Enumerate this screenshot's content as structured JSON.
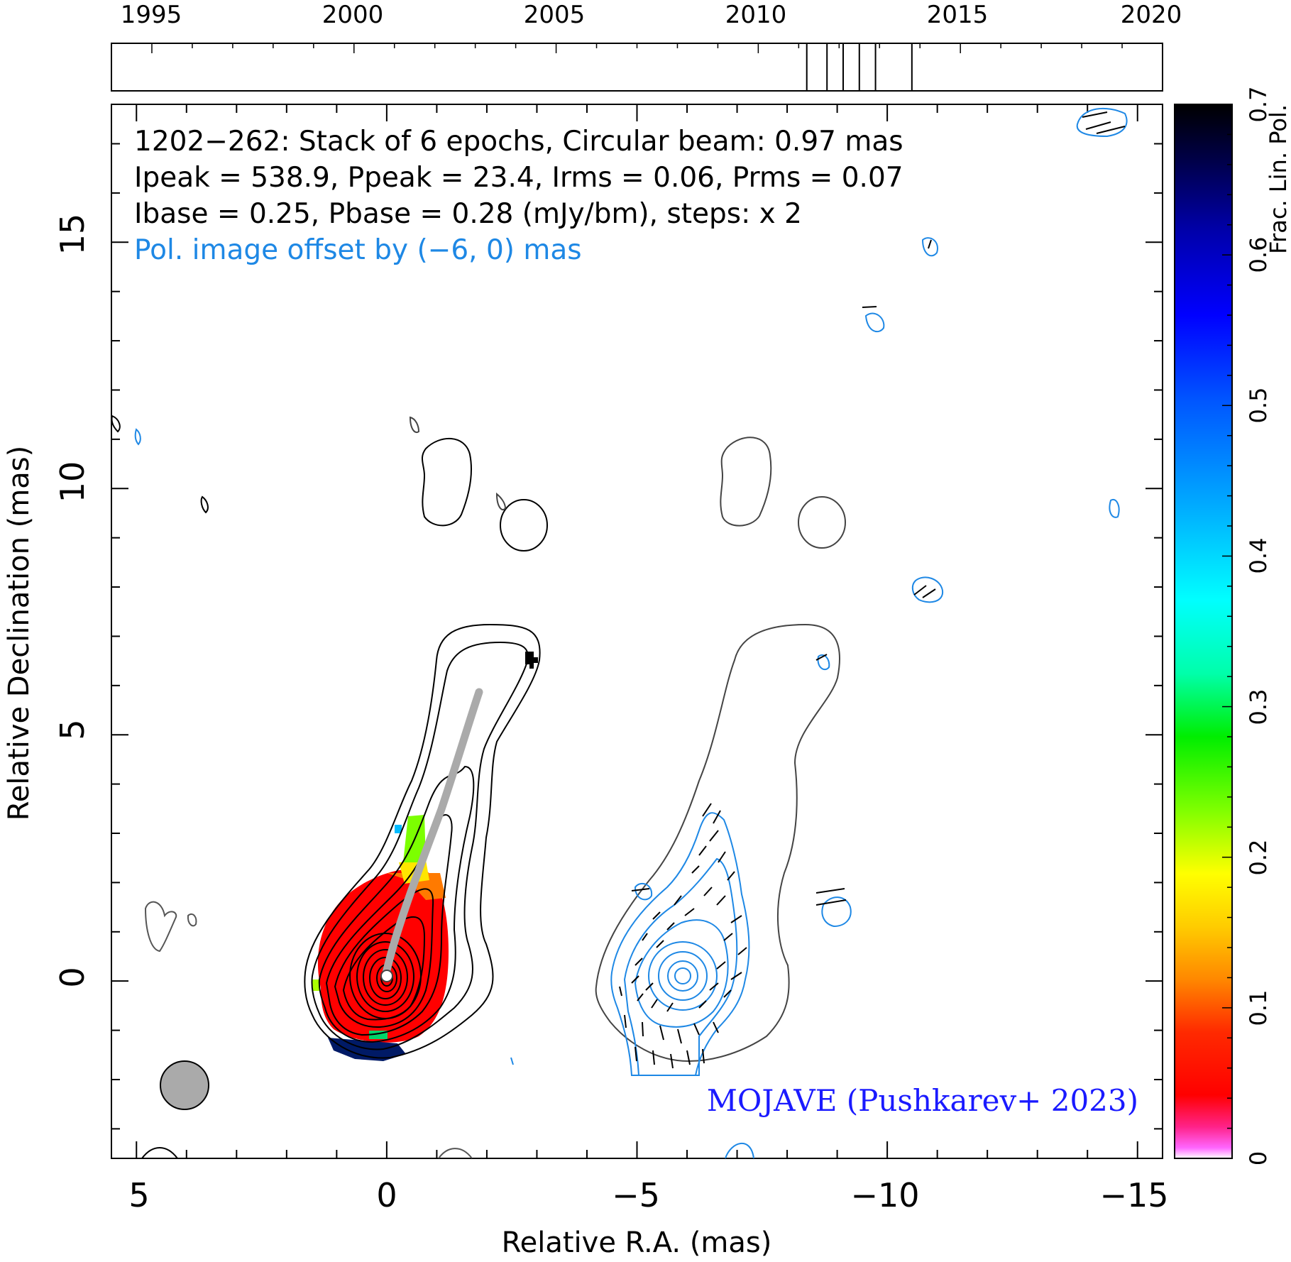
{
  "epoch_timeline": {
    "years": [
      "1995",
      "2000",
      "2005",
      "2010",
      "2015",
      "2020"
    ],
    "epoch_marks": [
      2011.2,
      2011.7,
      2012.1,
      2012.5,
      2012.9,
      2013.8
    ],
    "year_range": [
      1994,
      2020
    ]
  },
  "map": {
    "ra_range_mas": [
      5.5,
      -15.5
    ],
    "dec_range_mas": [
      -3.6,
      17.8
    ],
    "x_ticks": [
      "5",
      "0",
      "−5",
      "−10",
      "−15"
    ],
    "y_ticks": [
      "0",
      "5",
      "10",
      "15"
    ],
    "x_label": "Relative R.A. (mas)",
    "y_label": "Relative Declination (mas)",
    "pol_offset_mas": -6
  },
  "info": {
    "line1": "1202−262: Stack of 6 epochs, Circular beam: 0.97 mas",
    "line2": "Ipeak = 538.9, Ppeak = 23.4, Irms = 0.06, Prms = 0.07",
    "line3": "Ibase = 0.25, Pbase = 0.28 (mJy/bm), steps: x 2",
    "line4": "Pol. image offset by (−6, 0) mas"
  },
  "credit": "MOJAVE (Pushkarev+ 2023)",
  "colorbar": {
    "label": "Frac. Lin. Pol.",
    "range": [
      0,
      0.7
    ],
    "ticks": [
      "0",
      "0.1",
      "0.2",
      "0.3",
      "0.4",
      "0.5",
      "0.6",
      "0.7"
    ]
  },
  "colors": {
    "stokes_i_contour": "#000000",
    "pol_contour": "#1e88e5",
    "ridge_line": "#aaaaaa",
    "credit_text": "#1a1aff",
    "offset_text": "#1e88e5"
  },
  "beam_diameter_mas": 0.97
}
